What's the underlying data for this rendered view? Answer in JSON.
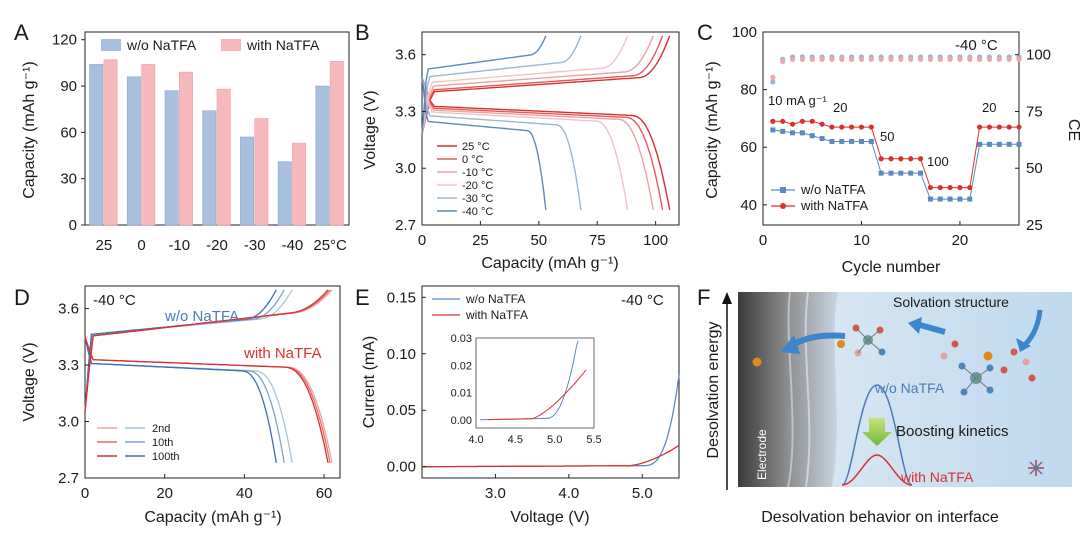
{
  "figure": {
    "panels": [
      "A",
      "B",
      "C",
      "D",
      "E",
      "F"
    ]
  },
  "chart_data": [
    {
      "panel": "A",
      "type": "bar",
      "categories": [
        "25",
        "0",
        "-10",
        "-20",
        "-30",
        "-40",
        "25°C"
      ],
      "series": [
        {
          "name": "w/o NaTFA",
          "color": "#a9bfdf",
          "values": [
            104,
            96,
            87,
            74,
            57,
            41,
            90
          ]
        },
        {
          "name": "with NaTFA",
          "color": "#f6b8bd",
          "values": [
            107,
            104,
            99,
            88,
            69,
            53,
            106
          ]
        }
      ],
      "ylabel": "Capacity (mAh g⁻¹)",
      "yticks": [
        "0",
        "30",
        "60",
        "90",
        "120"
      ],
      "ylim": [
        0,
        125
      ]
    },
    {
      "panel": "B",
      "type": "line",
      "xlabel": "Capacity (mAh g⁻¹)",
      "ylabel": "Voltage (V)",
      "xticks": [
        "0",
        "25",
        "50",
        "75",
        "100"
      ],
      "yticks": [
        "2.7",
        "3.0",
        "3.3",
        "3.6"
      ],
      "xlim": [
        0,
        110
      ],
      "ylim": [
        2.7,
        3.72
      ],
      "series": [
        {
          "name": "25 °C",
          "color": "#d9302f",
          "capacity": 106,
          "charge_plateau": 3.4,
          "discharge_plateau": 3.33
        },
        {
          "name": "0 °C",
          "color": "#e35a5a",
          "capacity": 103,
          "charge_plateau": 3.41,
          "discharge_plateau": 3.32
        },
        {
          "name": "-10 °C",
          "color": "#eea1a1",
          "capacity": 99,
          "charge_plateau": 3.43,
          "discharge_plateau": 3.31
        },
        {
          "name": "-20 °C",
          "color": "#f2c4c4",
          "capacity": 88,
          "charge_plateau": 3.45,
          "discharge_plateau": 3.3
        },
        {
          "name": "-30 °C",
          "color": "#9bb7d6",
          "capacity": 68,
          "charge_plateau": 3.48,
          "discharge_plateau": 3.28
        },
        {
          "name": "-40 °C",
          "color": "#5b8ac0",
          "capacity": 53,
          "charge_plateau": 3.52,
          "discharge_plateau": 3.25
        }
      ]
    },
    {
      "panel": "C",
      "type": "scatter",
      "xlabel": "Cycle number",
      "ylabel": "Capacity (mAh g⁻¹)",
      "ylabel_right": "CE",
      "xticks": [
        "0",
        "10",
        "20"
      ],
      "yticks": [
        "40",
        "60",
        "80",
        "100"
      ],
      "yticks_right": [
        "25",
        "50",
        "75",
        "100"
      ],
      "xlim": [
        0,
        26
      ],
      "ylim": [
        33,
        100
      ],
      "ylim_right": [
        25,
        110
      ],
      "annotations": [
        "-40 °C",
        "10 mA g⁻¹",
        "20",
        "50",
        "100",
        "20"
      ],
      "series": [
        {
          "name": "w/o NaTFA",
          "color": "#5b8ac0",
          "capacity": [
            66,
            65.5,
            65,
            65,
            64,
            63,
            62,
            62,
            62,
            62,
            62,
            51,
            51,
            51,
            51,
            51,
            42,
            42,
            42,
            42,
            42,
            61,
            61,
            61,
            61,
            61
          ],
          "ce": [
            88,
            98,
            99,
            99,
            99,
            99,
            99,
            99,
            99,
            99,
            99,
            99,
            99,
            99,
            99,
            99,
            99,
            99,
            99,
            99,
            99,
            99,
            99,
            99,
            99,
            99
          ]
        },
        {
          "name": "with NaTFA",
          "color": "#d9302f",
          "capacity": [
            69,
            69,
            68,
            69,
            69,
            68,
            67,
            67,
            67,
            67,
            67,
            56,
            56,
            56,
            56,
            56,
            46,
            46,
            46,
            46,
            46,
            67,
            67,
            67,
            67,
            67
          ],
          "ce": [
            90,
            97,
            98,
            98,
            98,
            98,
            98,
            98,
            98,
            98,
            98,
            98,
            98,
            98,
            98,
            98,
            98,
            98,
            98,
            98,
            98,
            98,
            98,
            98,
            98,
            98
          ]
        }
      ]
    },
    {
      "panel": "D",
      "type": "line",
      "xlabel": "Capacity (mAh g⁻¹)",
      "ylabel": "Voltage (V)",
      "xticks": [
        "0",
        "20",
        "40",
        "60"
      ],
      "yticks": [
        "2.7",
        "3.0",
        "3.3",
        "3.6"
      ],
      "xlim": [
        0,
        64
      ],
      "ylim": [
        2.7,
        3.72
      ],
      "annotations": [
        "-40 °C",
        "w/o NaTFA",
        "with NaTFA"
      ],
      "legend": [
        "2nd",
        "10th",
        "100th"
      ],
      "series": [
        {
          "name": "w/o NaTFA 2nd",
          "color": "#a9c4e2",
          "capacity": 52
        },
        {
          "name": "w/o NaTFA 10th",
          "color": "#7aa3d1",
          "capacity": 50
        },
        {
          "name": "w/o NaTFA 100th",
          "color": "#3e6fad",
          "capacity": 48
        },
        {
          "name": "with NaTFA 2nd",
          "color": "#f0a4a4",
          "capacity": 62
        },
        {
          "name": "with NaTFA 10th",
          "color": "#e26e6e",
          "capacity": 61.5
        },
        {
          "name": "with NaTFA 100th",
          "color": "#d9302f",
          "capacity": 61
        }
      ]
    },
    {
      "panel": "E",
      "type": "line",
      "xlabel": "Voltage (V)",
      "ylabel": "Current (mA)",
      "xticks": [
        "3.0",
        "4.0",
        "5.0"
      ],
      "yticks": [
        "0.00",
        "0.05",
        "0.10",
        "0.15"
      ],
      "xlim": [
        2.0,
        5.5
      ],
      "ylim": [
        -0.01,
        0.16
      ],
      "annotations": [
        "-40 °C"
      ],
      "inset": {
        "xticks": [
          "4.0",
          "4.5",
          "5.0",
          "5.5"
        ],
        "yticks": [
          "0.00",
          "0.01",
          "0.02",
          "0.03"
        ],
        "xlim": [
          4.0,
          5.5
        ],
        "ylim": [
          -0.003,
          0.03
        ]
      },
      "series": [
        {
          "name": "w/o NaTFA",
          "color": "#5b8ac0"
        },
        {
          "name": "with NaTFA",
          "color": "#d9302f"
        }
      ]
    }
  ],
  "schematic": {
    "title": "Desolvation behavior on interface",
    "ylabel": "Desolvation energy",
    "electrode_label": "Electrode",
    "solvation_label": "Solvation structure",
    "barrier_high_label": "w/o NaTFA",
    "barrier_low_label": "with NaTFA",
    "kinetics_label": "Boosting kinetics"
  }
}
